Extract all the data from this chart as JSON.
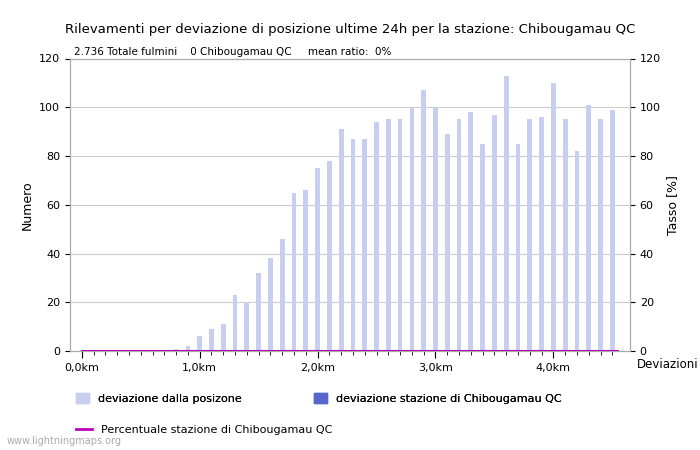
{
  "title": "Rilevamenti per deviazione di posizione ultime 24h per la stazione: Chibougamau QC",
  "subtitle": "2.736 Totale fulmini    0 Chibougamau QC     mean ratio:  0%",
  "ylabel_left": "Numero",
  "ylabel_right": "Tasso [%]",
  "xlabel": "Deviazioni",
  "bar_color_light": "#c8cef0",
  "bar_color_dark": "#5566cc",
  "line_color": "#bb00bb",
  "background_color": "#ffffff",
  "grid_color": "#cccccc",
  "ylim": [
    0,
    120
  ],
  "watermark": "www.lightningmaps.org",
  "legend_label1": "deviazione dalla posizone",
  "legend_label2": "deviazione stazione di Chibougamau QC",
  "legend_label3": "Percentuale stazione di Chibougamau QC",
  "x_positions": [
    0.1,
    0.2,
    0.3,
    0.4,
    0.5,
    0.6,
    0.7,
    0.8,
    0.9,
    1.0,
    1.1,
    1.2,
    1.3,
    1.4,
    1.5,
    1.6,
    1.7,
    1.8,
    1.9,
    2.0,
    2.1,
    2.2,
    2.3,
    2.4,
    2.5,
    2.6,
    2.7,
    2.8,
    2.9,
    3.0,
    3.1,
    3.2,
    3.3,
    3.4,
    3.5,
    3.6,
    3.7,
    3.8,
    3.9,
    4.0,
    4.1,
    4.2,
    4.3,
    4.4,
    4.5
  ],
  "bar_heights": [
    0,
    0,
    0,
    0,
    0,
    0,
    0,
    1,
    2,
    6,
    9,
    11,
    23,
    20,
    32,
    38,
    46,
    65,
    66,
    75,
    78,
    91,
    87,
    87,
    94,
    95,
    95,
    100,
    107,
    100,
    89,
    95,
    98,
    85,
    97,
    113,
    85,
    95,
    96,
    110,
    95,
    82,
    101,
    95,
    99
  ],
  "xtick_positions": [
    0.0,
    1.0,
    2.0,
    3.0,
    4.0
  ],
  "xtick_labels": [
    "0,0km",
    "1,0km",
    "2,0km",
    "3,0km",
    "4,0km"
  ],
  "ytick_positions": [
    0,
    20,
    40,
    60,
    80,
    100,
    120
  ],
  "ytick_labels": [
    "0",
    "20",
    "40",
    "60",
    "80",
    "100",
    "120"
  ]
}
